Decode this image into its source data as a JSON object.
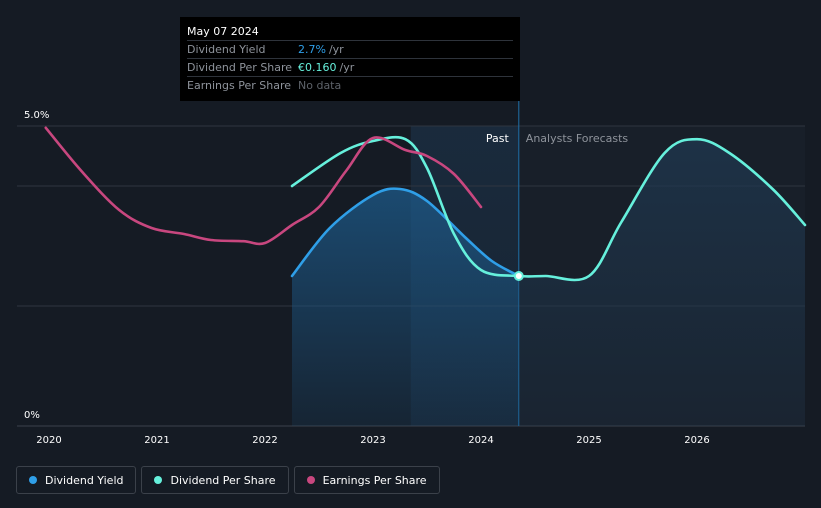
{
  "tooltip": {
    "date": "May 07 2024",
    "rows": [
      {
        "name": "Dividend Yield",
        "value": "2.7%",
        "unit": "/yr"
      },
      {
        "name": "Dividend Per Share",
        "value": "€0.160",
        "unit": "/yr"
      },
      {
        "name": "Earnings Per Share",
        "value": "No data",
        "unit": ""
      }
    ]
  },
  "regions": {
    "past": "Past",
    "forecast": "Analysts Forecasts"
  },
  "legend": [
    {
      "label": "Dividend Yield",
      "color": "#2f9fe8"
    },
    {
      "label": "Dividend Per Share",
      "color": "#66f0dc"
    },
    {
      "label": "Earnings Per Share",
      "color": "#c8477f"
    }
  ],
  "chart_data": {
    "type": "line",
    "title": "",
    "xlabel": "",
    "ylabel": "",
    "x_ticks": [
      "2020",
      "2021",
      "2022",
      "2023",
      "2024",
      "2025",
      "2026"
    ],
    "y_ticks": [
      "5.0%",
      "0%"
    ],
    "ylim": [
      0,
      5.0
    ],
    "xlim": [
      2019.7,
      2027.0
    ],
    "past_end": 2024.35,
    "forecast_start_shade": 2023.35,
    "series": [
      {
        "name": "Dividend Yield",
        "color": "#2f9fe8",
        "filled": true,
        "points": [
          [
            2022.25,
            2.5
          ],
          [
            2022.6,
            3.3
          ],
          [
            2023.0,
            3.85
          ],
          [
            2023.25,
            3.95
          ],
          [
            2023.5,
            3.75
          ],
          [
            2023.85,
            3.15
          ],
          [
            2024.1,
            2.75
          ],
          [
            2024.35,
            2.5
          ]
        ]
      },
      {
        "name": "Dividend Per Share",
        "color": "#66f0dc",
        "filled": false,
        "points": [
          [
            2022.25,
            4.0
          ],
          [
            2022.7,
            4.55
          ],
          [
            2023.0,
            4.75
          ],
          [
            2023.3,
            4.78
          ],
          [
            2023.5,
            4.3
          ],
          [
            2023.75,
            3.2
          ],
          [
            2024.0,
            2.6
          ],
          [
            2024.35,
            2.5
          ],
          [
            2024.6,
            2.5
          ],
          [
            2025.0,
            2.5
          ],
          [
            2025.3,
            3.4
          ],
          [
            2025.7,
            4.55
          ],
          [
            2026.0,
            4.78
          ],
          [
            2026.3,
            4.55
          ],
          [
            2026.7,
            3.95
          ],
          [
            2027.0,
            3.35
          ]
        ]
      },
      {
        "name": "Earnings Per Share",
        "color": "#c8477f",
        "filled": false,
        "points": [
          [
            2019.97,
            4.97
          ],
          [
            2020.3,
            4.25
          ],
          [
            2020.65,
            3.6
          ],
          [
            2020.95,
            3.3
          ],
          [
            2021.25,
            3.2
          ],
          [
            2021.5,
            3.1
          ],
          [
            2021.8,
            3.08
          ],
          [
            2022.0,
            3.05
          ],
          [
            2022.25,
            3.35
          ],
          [
            2022.5,
            3.65
          ],
          [
            2022.75,
            4.25
          ],
          [
            2023.0,
            4.8
          ],
          [
            2023.3,
            4.6
          ],
          [
            2023.5,
            4.5
          ],
          [
            2023.75,
            4.2
          ],
          [
            2024.0,
            3.65
          ]
        ]
      }
    ],
    "marker": {
      "x": 2024.35,
      "y": 2.5
    }
  }
}
